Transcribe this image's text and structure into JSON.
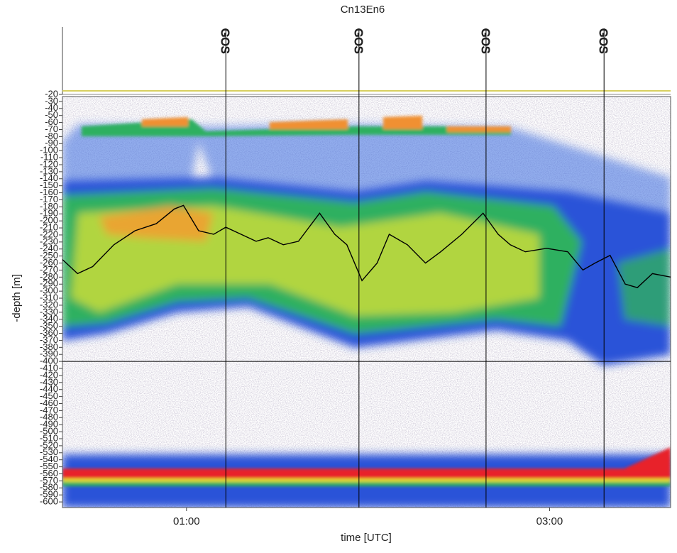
{
  "chart_data": {
    "type": "line",
    "title": "Cn13En6",
    "x_label": "time [UTC]",
    "y_label": "-depth [m]",
    "xlim": [
      19,
      220
    ],
    "xticks": [
      {
        "value": 60,
        "label": "01:00"
      },
      {
        "value": 180,
        "label": "03:00"
      }
    ],
    "ylim": [
      -608,
      -20
    ],
    "yticks": [
      -20,
      -30,
      -40,
      -50,
      -60,
      -70,
      -80,
      -90,
      -100,
      -110,
      -120,
      -130,
      -140,
      -150,
      -160,
      -170,
      -180,
      -190,
      -200,
      -210,
      -220,
      -230,
      -240,
      -250,
      -260,
      -270,
      -280,
      -290,
      -300,
      -310,
      -320,
      -330,
      -340,
      -350,
      -360,
      -370,
      -380,
      -390,
      -400,
      -410,
      -420,
      -430,
      -440,
      -450,
      -460,
      -470,
      -480,
      -490,
      -500,
      -510,
      -520,
      -530,
      -540,
      -550,
      -560,
      -570,
      -580,
      -590,
      -600
    ],
    "hlines": [
      -400
    ],
    "events": [
      {
        "x": 73,
        "label": "GOS"
      },
      {
        "x": 117,
        "label": "GOS"
      },
      {
        "x": 159,
        "label": "GOS"
      },
      {
        "x": 198,
        "label": "GOS"
      }
    ],
    "series": [
      {
        "color": "#000000",
        "x": [
          19,
          24,
          29,
          36,
          43,
          50,
          56,
          59,
          64,
          69,
          73,
          78,
          83,
          87,
          92,
          97,
          104,
          109,
          113,
          118,
          123,
          127,
          133,
          139,
          144,
          151,
          158,
          163,
          167,
          172,
          179,
          186,
          191,
          195,
          200,
          205,
          209,
          214,
          220
        ],
        "values": [
          -255,
          -275,
          -265,
          -234,
          -214,
          -204,
          -183,
          -178,
          -214,
          -219,
          -209,
          -219,
          -229,
          -224,
          -234,
          -229,
          -189,
          -219,
          -234,
          -285,
          -260,
          -219,
          -234,
          -260,
          -244,
          -219,
          -189,
          -219,
          -234,
          -244,
          -239,
          -244,
          -270,
          -260,
          -249,
          -290,
          -295,
          -275,
          -280
        ]
      }
    ]
  }
}
